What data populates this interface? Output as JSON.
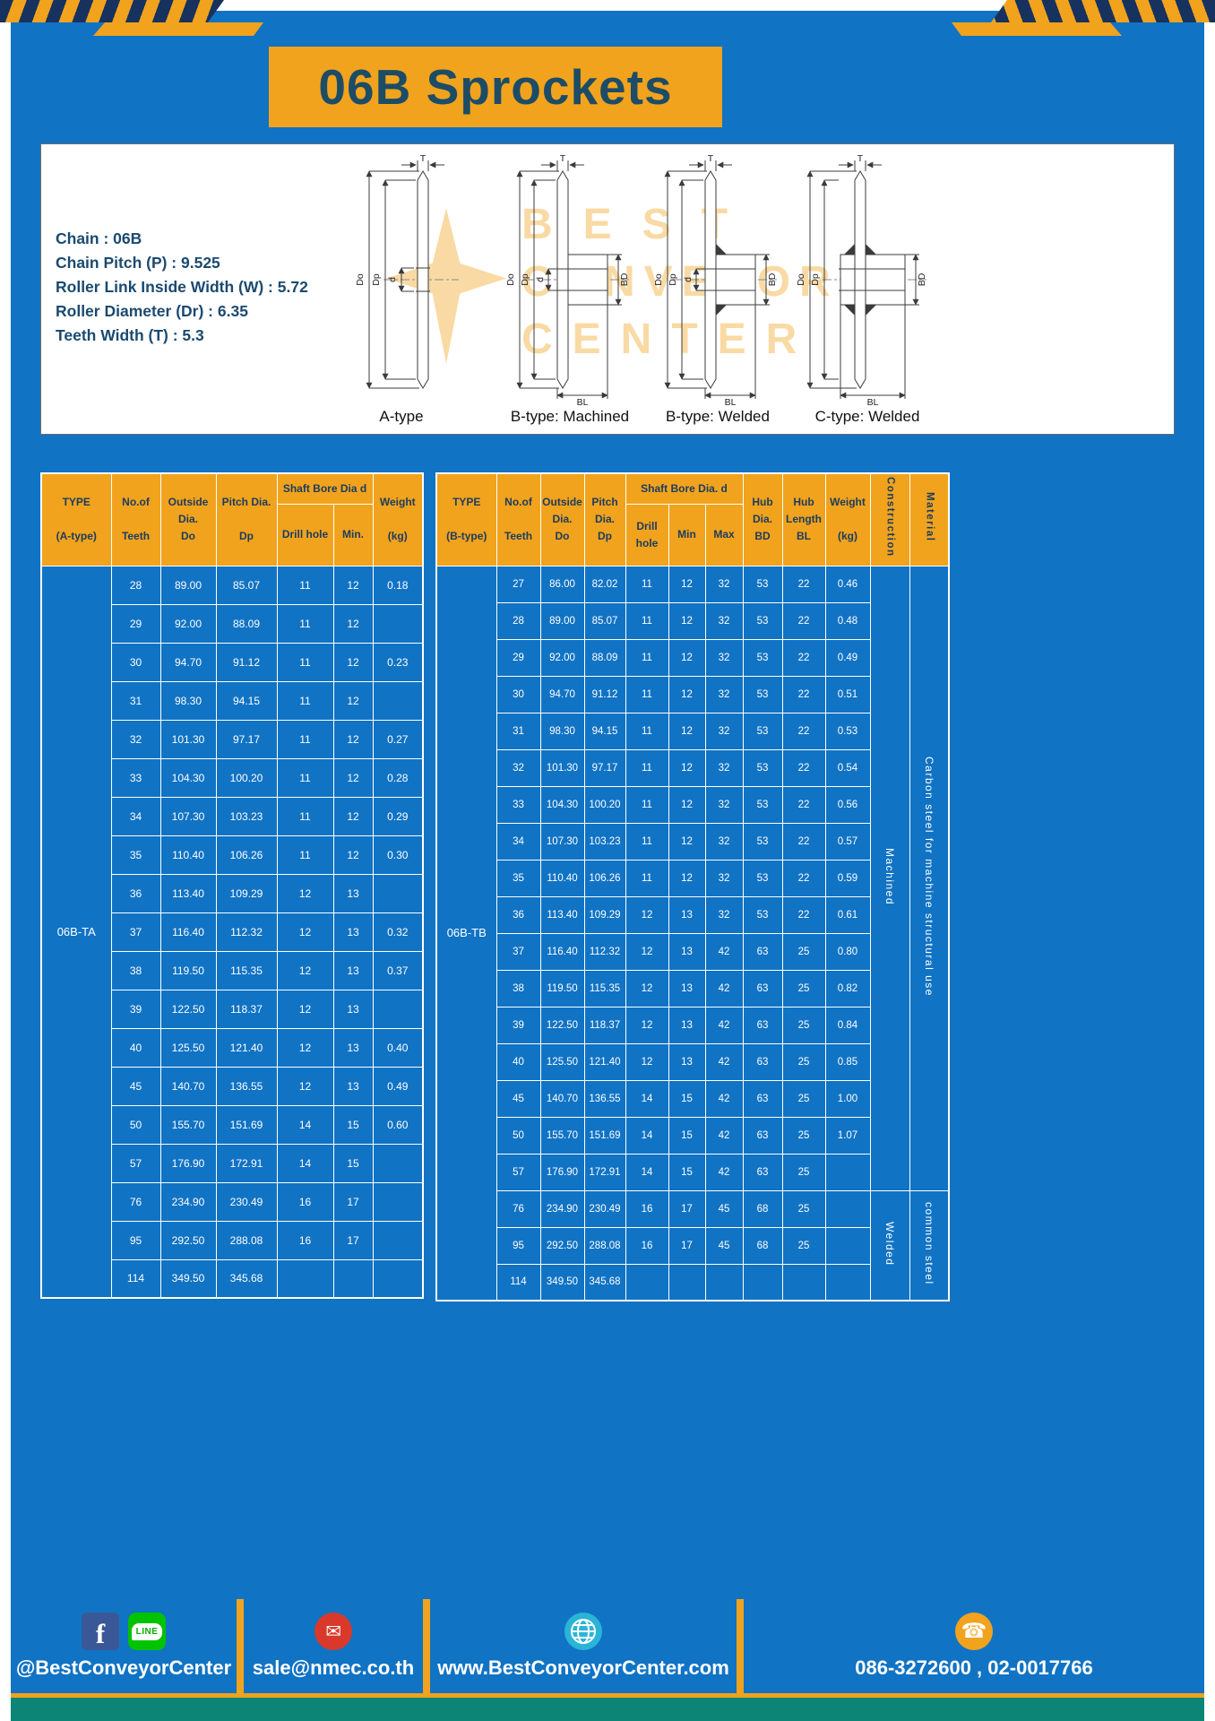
{
  "banner": {
    "title": "06B Sprockets"
  },
  "specs": {
    "lines": [
      "Chain : 06B",
      "Chain Pitch (P) : 9.525",
      "Roller Link Inside Width (W) : 5.72",
      "Roller Diameter (Dr) : 6.35",
      "Teeth Width (T) : 5.3"
    ]
  },
  "drawings": {
    "watermark_lines": [
      "BEST",
      "CONVEYOR",
      "CENTER"
    ],
    "labels": [
      "A-type",
      "B-type: Machined",
      "B-type: Welded",
      "C-type: Welded"
    ],
    "dims": {
      "t": "T",
      "do": "Do",
      "dp": "Dp",
      "d": "d",
      "bd": "BD",
      "bl": "BL"
    }
  },
  "table_a": {
    "h_type": "TYPE\n\n(A-type)",
    "h_teeth": "No.of\n\nTeeth",
    "h_outside": "Outside\nDia.\nDo",
    "h_pitch": "Pitch Dia.\n\nDp",
    "h_shaft_group": "Shaft Bore Dia d",
    "h_drill": "Drill hole",
    "h_min": "Min.",
    "h_weight": "Weight\n\n(kg)",
    "type_value": "06B-TA",
    "rows": [
      [
        "28",
        "89.00",
        "85.07",
        "11",
        "12",
        "0.18"
      ],
      [
        "29",
        "92.00",
        "88.09",
        "11",
        "12",
        ""
      ],
      [
        "30",
        "94.70",
        "91.12",
        "11",
        "12",
        "0.23"
      ],
      [
        "31",
        "98.30",
        "94.15",
        "11",
        "12",
        ""
      ],
      [
        "32",
        "101.30",
        "97.17",
        "11",
        "12",
        "0.27"
      ],
      [
        "33",
        "104.30",
        "100.20",
        "11",
        "12",
        "0.28"
      ],
      [
        "34",
        "107.30",
        "103.23",
        "11",
        "12",
        "0.29"
      ],
      [
        "35",
        "110.40",
        "106.26",
        "11",
        "12",
        "0.30"
      ],
      [
        "36",
        "113.40",
        "109.29",
        "12",
        "13",
        ""
      ],
      [
        "37",
        "116.40",
        "112.32",
        "12",
        "13",
        "0.32"
      ],
      [
        "38",
        "119.50",
        "115.35",
        "12",
        "13",
        "0.37"
      ],
      [
        "39",
        "122.50",
        "118.37",
        "12",
        "13",
        ""
      ],
      [
        "40",
        "125.50",
        "121.40",
        "12",
        "13",
        "0.40"
      ],
      [
        "45",
        "140.70",
        "136.55",
        "12",
        "13",
        "0.49"
      ],
      [
        "50",
        "155.70",
        "151.69",
        "14",
        "15",
        "0.60"
      ],
      [
        "57",
        "176.90",
        "172.91",
        "14",
        "15",
        ""
      ],
      [
        "76",
        "234.90",
        "230.49",
        "16",
        "17",
        ""
      ],
      [
        "95",
        "292.50",
        "288.08",
        "16",
        "17",
        ""
      ],
      [
        "114",
        "349.50",
        "345.68",
        "",
        "",
        ""
      ]
    ]
  },
  "table_b": {
    "h_type": "TYPE\n\n(B-type)",
    "h_teeth": "No.of\n\nTeeth",
    "h_outside": "Outside\nDia.\nDo",
    "h_pitch": "Pitch\nDia.\nDp",
    "h_shaft_group": "Shaft Bore Dia. d",
    "h_drill": "Drill hole",
    "h_min": "Min",
    "h_max": "Max",
    "h_hub_dia": "Hub\nDia.\nBD",
    "h_hub_len": "Hub\nLength\nBL",
    "h_weight": "Weight\n\n(kg)",
    "h_construction": "Construction",
    "h_material": "Material",
    "type_value": "06B-TB",
    "rows": [
      [
        "27",
        "86.00",
        "82.02",
        "11",
        "12",
        "32",
        "53",
        "22",
        "0.46"
      ],
      [
        "28",
        "89.00",
        "85.07",
        "11",
        "12",
        "32",
        "53",
        "22",
        "0.48"
      ],
      [
        "29",
        "92.00",
        "88.09",
        "11",
        "12",
        "32",
        "53",
        "22",
        "0.49"
      ],
      [
        "30",
        "94.70",
        "91.12",
        "11",
        "12",
        "32",
        "53",
        "22",
        "0.51"
      ],
      [
        "31",
        "98.30",
        "94.15",
        "11",
        "12",
        "32",
        "53",
        "22",
        "0.53"
      ],
      [
        "32",
        "101.30",
        "97.17",
        "11",
        "12",
        "32",
        "53",
        "22",
        "0.54"
      ],
      [
        "33",
        "104.30",
        "100.20",
        "11",
        "12",
        "32",
        "53",
        "22",
        "0.56"
      ],
      [
        "34",
        "107.30",
        "103.23",
        "11",
        "12",
        "32",
        "53",
        "22",
        "0.57"
      ],
      [
        "35",
        "110.40",
        "106.26",
        "11",
        "12",
        "32",
        "53",
        "22",
        "0.59"
      ],
      [
        "36",
        "113.40",
        "109.29",
        "12",
        "13",
        "32",
        "53",
        "22",
        "0.61"
      ],
      [
        "37",
        "116.40",
        "112.32",
        "12",
        "13",
        "42",
        "63",
        "25",
        "0.80"
      ],
      [
        "38",
        "119.50",
        "115.35",
        "12",
        "13",
        "42",
        "63",
        "25",
        "0.82"
      ],
      [
        "39",
        "122.50",
        "118.37",
        "12",
        "13",
        "42",
        "63",
        "25",
        "0.84"
      ],
      [
        "40",
        "125.50",
        "121.40",
        "12",
        "13",
        "42",
        "63",
        "25",
        "0.85"
      ],
      [
        "45",
        "140.70",
        "136.55",
        "14",
        "15",
        "42",
        "63",
        "25",
        "1.00"
      ],
      [
        "50",
        "155.70",
        "151.69",
        "14",
        "15",
        "42",
        "63",
        "25",
        "1.07"
      ],
      [
        "57",
        "176.90",
        "172.91",
        "14",
        "15",
        "42",
        "63",
        "25",
        ""
      ],
      [
        "76",
        "234.90",
        "230.49",
        "16",
        "17",
        "45",
        "68",
        "25",
        ""
      ],
      [
        "95",
        "292.50",
        "288.08",
        "16",
        "17",
        "45",
        "68",
        "25",
        ""
      ],
      [
        "114",
        "349.50",
        "345.68",
        "",
        "",
        "",
        "",
        "",
        ""
      ]
    ],
    "construction_groups": [
      {
        "label": "Machined",
        "span": 17
      },
      {
        "label": "Welded",
        "span": 3
      }
    ],
    "material_groups": [
      {
        "label": "Carbon steel for machine structural use",
        "span": 17
      },
      {
        "label": "common steel",
        "span": 3
      }
    ]
  },
  "footer": {
    "icons": {
      "facebook_glyph": "f",
      "email_glyph": "✉",
      "phone_glyph": "☎",
      "line_label": "LINE"
    },
    "sections": [
      {
        "text": "@BestConveyorCenter"
      },
      {
        "text": "sale@nmec.co.th"
      },
      {
        "text": "www.BestConveyorCenter.com"
      },
      {
        "text": "086-3272600 , 02-0017766"
      }
    ]
  }
}
